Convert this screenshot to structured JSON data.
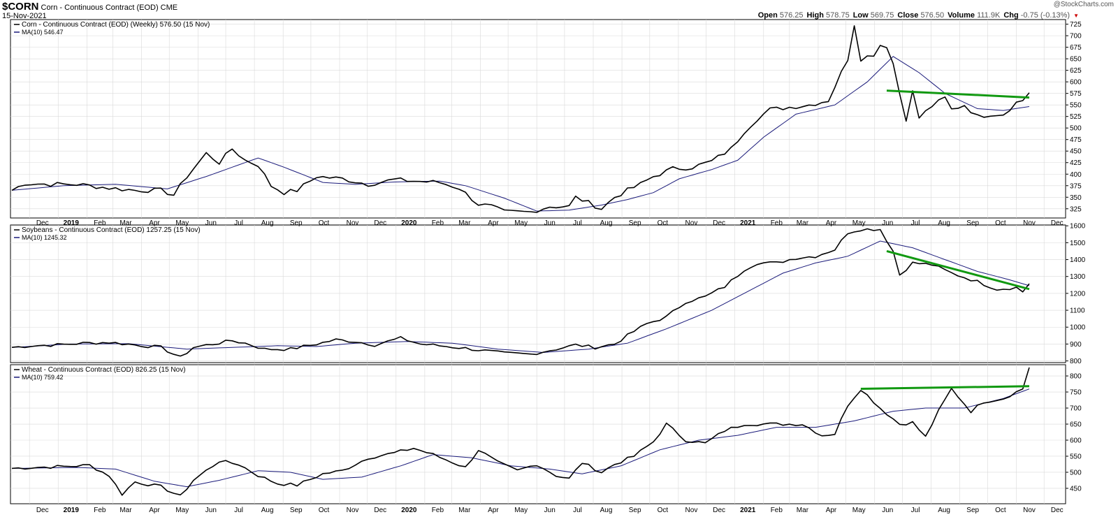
{
  "header": {
    "symbol": "$CORN",
    "symbol_desc": "Corn - Continuous Contract (EOD) CME",
    "date": "15-Nov-2021",
    "copyright": "@StockCharts.com",
    "ohlc": [
      {
        "label": "Open",
        "value": "576.25"
      },
      {
        "label": "High",
        "value": "578.75"
      },
      {
        "label": "Low",
        "value": "569.75"
      },
      {
        "label": "Close",
        "value": "576.50"
      },
      {
        "label": "Volume",
        "value": "111.9K"
      },
      {
        "label": "Chg",
        "value": "-0.75 (-0.13%)"
      }
    ]
  },
  "colors": {
    "price": "#000000",
    "ma": "#1a1a7a",
    "trend": "#119911",
    "grid": "#d9d9d9"
  },
  "chart_data": [
    {
      "type": "line",
      "legend": [
        "Corn - Continuous Contract (EOD) (Weekly) 576.50 (15 Nov)",
        "MA(10) 546.47"
      ],
      "ylim": [
        305,
        735
      ],
      "yticks": [
        325,
        350,
        375,
        400,
        425,
        450,
        475,
        500,
        525,
        550,
        575,
        600,
        625,
        650,
        675,
        700,
        725
      ],
      "anchors": [
        [
          "2018-11-12",
          365
        ],
        [
          "2018-11-26",
          380
        ],
        [
          "2018-12-24",
          378
        ],
        [
          "2019-01-21",
          378
        ],
        [
          "2019-02-25",
          370
        ],
        [
          "2019-03-25",
          365
        ],
        [
          "2019-04-22",
          365
        ],
        [
          "2019-05-06",
          355
        ],
        [
          "2019-05-20",
          395
        ],
        [
          "2019-06-10",
          445
        ],
        [
          "2019-06-24",
          425
        ],
        [
          "2019-07-08",
          455
        ],
        [
          "2019-07-22",
          430
        ],
        [
          "2019-08-05",
          420
        ],
        [
          "2019-08-19",
          375
        ],
        [
          "2019-09-02",
          360
        ],
        [
          "2019-09-16",
          365
        ],
        [
          "2019-10-07",
          395
        ],
        [
          "2019-11-04",
          390
        ],
        [
          "2019-12-02",
          378
        ],
        [
          "2019-12-30",
          388
        ],
        [
          "2020-01-20",
          385
        ],
        [
          "2020-02-17",
          382
        ],
        [
          "2020-03-09",
          370
        ],
        [
          "2020-03-30",
          335
        ],
        [
          "2020-04-13",
          330
        ],
        [
          "2020-04-27",
          318
        ],
        [
          "2020-05-25",
          318
        ],
        [
          "2020-06-15",
          330
        ],
        [
          "2020-07-06",
          330
        ],
        [
          "2020-07-13",
          350
        ],
        [
          "2020-07-27",
          338
        ],
        [
          "2020-08-10",
          325
        ],
        [
          "2020-08-24",
          350
        ],
        [
          "2020-09-07",
          365
        ],
        [
          "2020-09-21",
          378
        ],
        [
          "2020-10-05",
          395
        ],
        [
          "2020-10-26",
          412
        ],
        [
          "2020-11-16",
          415
        ],
        [
          "2020-12-07",
          428
        ],
        [
          "2020-12-28",
          455
        ],
        [
          "2021-01-11",
          492
        ],
        [
          "2021-01-25",
          520
        ],
        [
          "2021-02-08",
          540
        ],
        [
          "2021-03-01",
          545
        ],
        [
          "2021-03-22",
          550
        ],
        [
          "2021-04-12",
          560
        ],
        [
          "2021-04-26",
          620
        ],
        [
          "2021-05-03",
          650
        ],
        [
          "2021-05-10",
          725
        ],
        [
          "2021-05-17",
          650
        ],
        [
          "2021-05-31",
          660
        ],
        [
          "2021-06-07",
          680
        ],
        [
          "2021-06-14",
          678
        ],
        [
          "2021-06-21",
          640
        ],
        [
          "2021-06-28",
          575
        ],
        [
          "2021-07-05",
          520
        ],
        [
          "2021-07-12",
          578
        ],
        [
          "2021-07-19",
          522
        ],
        [
          "2021-08-02",
          548
        ],
        [
          "2021-08-16",
          565
        ],
        [
          "2021-08-23",
          540
        ],
        [
          "2021-09-06",
          550
        ],
        [
          "2021-09-20",
          525
        ],
        [
          "2021-10-04",
          530
        ],
        [
          "2021-10-18",
          530
        ],
        [
          "2021-11-01",
          555
        ],
        [
          "2021-11-08",
          560
        ],
        [
          "2021-11-15",
          576.5
        ]
      ],
      "ma_anchors": [
        [
          "2018-11-12",
          365
        ],
        [
          "2019-01-07",
          375
        ],
        [
          "2019-03-04",
          378
        ],
        [
          "2019-04-29",
          368
        ],
        [
          "2019-06-10",
          395
        ],
        [
          "2019-07-15",
          420
        ],
        [
          "2019-08-05",
          435
        ],
        [
          "2019-09-02",
          415
        ],
        [
          "2019-10-14",
          382
        ],
        [
          "2019-11-18",
          378
        ],
        [
          "2019-12-30",
          383
        ],
        [
          "2020-02-17",
          385
        ],
        [
          "2020-03-16",
          375
        ],
        [
          "2020-04-27",
          348
        ],
        [
          "2020-06-01",
          320
        ],
        [
          "2020-07-06",
          322
        ],
        [
          "2020-08-10",
          333
        ],
        [
          "2020-09-07",
          345
        ],
        [
          "2020-10-05",
          360
        ],
        [
          "2020-11-02",
          390
        ],
        [
          "2020-12-07",
          410
        ],
        [
          "2021-01-04",
          430
        ],
        [
          "2021-02-01",
          480
        ],
        [
          "2021-03-08",
          530
        ],
        [
          "2021-04-19",
          550
        ],
        [
          "2021-05-24",
          600
        ],
        [
          "2021-06-21",
          655
        ],
        [
          "2021-07-19",
          620
        ],
        [
          "2021-08-16",
          575
        ],
        [
          "2021-09-20",
          542
        ],
        [
          "2021-10-18",
          538
        ],
        [
          "2021-11-15",
          546.47
        ]
      ],
      "trendline": [
        [
          "2021-06-14",
          581
        ],
        [
          "2021-11-15",
          566
        ]
      ]
    },
    {
      "type": "line",
      "legend": [
        "Soybeans - Continuous Contract (EOD) 1257.25 (15 Nov)",
        "MA(10) 1245.32"
      ],
      "ylim": [
        790,
        1605
      ],
      "yticks": [
        800,
        900,
        1000,
        1100,
        1200,
        1300,
        1400,
        1500,
        1600
      ],
      "anchors": [
        [
          "2018-11-12",
          880
        ],
        [
          "2018-12-03",
          890
        ],
        [
          "2018-12-31",
          895
        ],
        [
          "2019-01-28",
          905
        ],
        [
          "2019-02-25",
          910
        ],
        [
          "2019-03-25",
          895
        ],
        [
          "2019-04-22",
          880
        ],
        [
          "2019-05-13",
          820
        ],
        [
          "2019-05-27",
          880
        ],
        [
          "2019-06-17",
          900
        ],
        [
          "2019-07-08",
          920
        ],
        [
          "2019-07-22",
          905
        ],
        [
          "2019-08-12",
          870
        ],
        [
          "2019-09-09",
          870
        ],
        [
          "2019-10-07",
          900
        ],
        [
          "2019-10-28",
          925
        ],
        [
          "2019-11-18",
          915
        ],
        [
          "2019-12-09",
          895
        ],
        [
          "2020-01-06",
          935
        ],
        [
          "2020-01-27",
          900
        ],
        [
          "2020-02-17",
          890
        ],
        [
          "2020-03-16",
          875
        ],
        [
          "2020-04-06",
          860
        ],
        [
          "2020-04-27",
          845
        ],
        [
          "2020-05-25",
          840
        ],
        [
          "2020-06-22",
          870
        ],
        [
          "2020-07-13",
          895
        ],
        [
          "2020-08-03",
          880
        ],
        [
          "2020-08-24",
          900
        ],
        [
          "2020-09-14",
          975
        ],
        [
          "2020-09-28",
          1020
        ],
        [
          "2020-10-19",
          1060
        ],
        [
          "2020-11-09",
          1150
        ],
        [
          "2020-11-30",
          1180
        ],
        [
          "2020-12-21",
          1240
        ],
        [
          "2021-01-11",
          1340
        ],
        [
          "2021-01-25",
          1380
        ],
        [
          "2021-02-15",
          1380
        ],
        [
          "2021-03-08",
          1410
        ],
        [
          "2021-03-29",
          1420
        ],
        [
          "2021-04-19",
          1460
        ],
        [
          "2021-05-03",
          1560
        ],
        [
          "2021-05-17",
          1580
        ],
        [
          "2021-06-07",
          1580
        ],
        [
          "2021-06-21",
          1450
        ],
        [
          "2021-06-28",
          1310
        ],
        [
          "2021-07-12",
          1380
        ],
        [
          "2021-08-02",
          1370
        ],
        [
          "2021-08-23",
          1320
        ],
        [
          "2021-09-20",
          1270
        ],
        [
          "2021-10-11",
          1225
        ],
        [
          "2021-11-01",
          1235
        ],
        [
          "2021-11-08",
          1210
        ],
        [
          "2021-11-15",
          1257.25
        ]
      ],
      "ma_anchors": [
        [
          "2018-11-12",
          880
        ],
        [
          "2019-01-14",
          900
        ],
        [
          "2019-03-18",
          902
        ],
        [
          "2019-05-20",
          870
        ],
        [
          "2019-07-08",
          880
        ],
        [
          "2019-08-26",
          890
        ],
        [
          "2019-10-07",
          885
        ],
        [
          "2019-11-18",
          905
        ],
        [
          "2020-01-13",
          915
        ],
        [
          "2020-03-02",
          905
        ],
        [
          "2020-04-20",
          870
        ],
        [
          "2020-06-08",
          850
        ],
        [
          "2020-07-27",
          870
        ],
        [
          "2020-09-07",
          905
        ],
        [
          "2020-10-19",
          990
        ],
        [
          "2020-12-07",
          1100
        ],
        [
          "2021-01-18",
          1220
        ],
        [
          "2021-02-22",
          1320
        ],
        [
          "2021-03-29",
          1380
        ],
        [
          "2021-05-03",
          1420
        ],
        [
          "2021-06-07",
          1510
        ],
        [
          "2021-07-12",
          1470
        ],
        [
          "2021-08-16",
          1400
        ],
        [
          "2021-09-20",
          1330
        ],
        [
          "2021-10-25",
          1280
        ],
        [
          "2021-11-15",
          1245.32
        ]
      ],
      "trendline": [
        [
          "2021-06-14",
          1450
        ],
        [
          "2021-11-15",
          1225
        ]
      ]
    },
    {
      "type": "line",
      "legend": [
        "Wheat - Continuous Contract (EOD) 826.25 (15 Nov)",
        "MA(10) 759.42"
      ],
      "ylim": [
        402,
        835
      ],
      "yticks": [
        450,
        500,
        550,
        600,
        650,
        700,
        750,
        800
      ],
      "anchors": [
        [
          "2018-11-12",
          512
        ],
        [
          "2018-12-03",
          515
        ],
        [
          "2019-01-07",
          518
        ],
        [
          "2019-02-04",
          522
        ],
        [
          "2019-02-25",
          490
        ],
        [
          "2019-03-11",
          432
        ],
        [
          "2019-03-25",
          470
        ],
        [
          "2019-04-22",
          455
        ],
        [
          "2019-05-13",
          425
        ],
        [
          "2019-05-27",
          475
        ],
        [
          "2019-06-24",
          535
        ],
        [
          "2019-07-15",
          525
        ],
        [
          "2019-08-05",
          490
        ],
        [
          "2019-08-26",
          465
        ],
        [
          "2019-09-16",
          460
        ],
        [
          "2019-10-14",
          495
        ],
        [
          "2019-11-04",
          505
        ],
        [
          "2019-12-02",
          545
        ],
        [
          "2019-12-30",
          560
        ],
        [
          "2020-01-20",
          575
        ],
        [
          "2020-02-10",
          555
        ],
        [
          "2020-03-16",
          515
        ],
        [
          "2020-03-30",
          570
        ],
        [
          "2020-04-20",
          530
        ],
        [
          "2020-05-11",
          505
        ],
        [
          "2020-06-01",
          525
        ],
        [
          "2020-06-22",
          490
        ],
        [
          "2020-07-06",
          480
        ],
        [
          "2020-07-20",
          530
        ],
        [
          "2020-08-10",
          500
        ],
        [
          "2020-08-24",
          525
        ],
        [
          "2020-09-14",
          550
        ],
        [
          "2020-10-05",
          595
        ],
        [
          "2020-10-19",
          650
        ],
        [
          "2020-11-09",
          600
        ],
        [
          "2020-11-30",
          590
        ],
        [
          "2020-12-21",
          630
        ],
        [
          "2021-01-11",
          650
        ],
        [
          "2021-02-01",
          650
        ],
        [
          "2021-02-22",
          650
        ],
        [
          "2021-03-15",
          650
        ],
        [
          "2021-04-05",
          615
        ],
        [
          "2021-04-19",
          620
        ],
        [
          "2021-05-03",
          710
        ],
        [
          "2021-05-17",
          760
        ],
        [
          "2021-06-07",
          700
        ],
        [
          "2021-06-28",
          650
        ],
        [
          "2021-07-12",
          655
        ],
        [
          "2021-07-26",
          610
        ],
        [
          "2021-08-09",
          690
        ],
        [
          "2021-08-23",
          760
        ],
        [
          "2021-09-13",
          690
        ],
        [
          "2021-09-27",
          720
        ],
        [
          "2021-10-18",
          730
        ],
        [
          "2021-11-08",
          760
        ],
        [
          "2021-11-15",
          826.25
        ]
      ],
      "ma_anchors": [
        [
          "2018-11-12",
          512
        ],
        [
          "2019-01-21",
          515
        ],
        [
          "2019-03-04",
          510
        ],
        [
          "2019-04-15",
          472
        ],
        [
          "2019-05-20",
          455
        ],
        [
          "2019-06-24",
          475
        ],
        [
          "2019-08-05",
          505
        ],
        [
          "2019-09-09",
          500
        ],
        [
          "2019-10-14",
          478
        ],
        [
          "2019-11-25",
          485
        ],
        [
          "2020-01-06",
          520
        ],
        [
          "2020-02-10",
          555
        ],
        [
          "2020-03-23",
          545
        ],
        [
          "2020-05-04",
          520
        ],
        [
          "2020-06-15",
          510
        ],
        [
          "2020-07-20",
          495
        ],
        [
          "2020-08-31",
          520
        ],
        [
          "2020-10-12",
          570
        ],
        [
          "2020-11-23",
          600
        ],
        [
          "2021-01-04",
          615
        ],
        [
          "2021-02-15",
          640
        ],
        [
          "2021-03-29",
          640
        ],
        [
          "2021-05-10",
          660
        ],
        [
          "2021-06-21",
          690
        ],
        [
          "2021-07-26",
          700
        ],
        [
          "2021-09-06",
          700
        ],
        [
          "2021-10-18",
          730
        ],
        [
          "2021-11-15",
          759.42
        ]
      ],
      "trendline": [
        [
          "2021-05-17",
          760
        ],
        [
          "2021-11-15",
          768
        ]
      ]
    }
  ],
  "month_labels": [
    [
      "2018-12-15",
      "Dec"
    ],
    [
      "2019-01-15",
      "2019"
    ],
    [
      "2019-02-15",
      "Feb"
    ],
    [
      "2019-03-15",
      "Mar"
    ],
    [
      "2019-04-15",
      "Apr"
    ],
    [
      "2019-05-15",
      "May"
    ],
    [
      "2019-06-15",
      "Jun"
    ],
    [
      "2019-07-15",
      "Jul"
    ],
    [
      "2019-08-15",
      "Aug"
    ],
    [
      "2019-09-15",
      "Sep"
    ],
    [
      "2019-10-15",
      "Oct"
    ],
    [
      "2019-11-15",
      "Nov"
    ],
    [
      "2019-12-15",
      "Dec"
    ],
    [
      "2020-01-15",
      "2020"
    ],
    [
      "2020-02-15",
      "Feb"
    ],
    [
      "2020-03-15",
      "Mar"
    ],
    [
      "2020-04-15",
      "Apr"
    ],
    [
      "2020-05-15",
      "May"
    ],
    [
      "2020-06-15",
      "Jun"
    ],
    [
      "2020-07-15",
      "Jul"
    ],
    [
      "2020-08-15",
      "Aug"
    ],
    [
      "2020-09-15",
      "Sep"
    ],
    [
      "2020-10-15",
      "Oct"
    ],
    [
      "2020-11-15",
      "Nov"
    ],
    [
      "2020-12-15",
      "Dec"
    ],
    [
      "2021-01-15",
      "2021"
    ],
    [
      "2021-02-15",
      "Feb"
    ],
    [
      "2021-03-15",
      "Mar"
    ],
    [
      "2021-04-15",
      "Apr"
    ],
    [
      "2021-05-15",
      "May"
    ],
    [
      "2021-06-15",
      "Jun"
    ],
    [
      "2021-07-15",
      "Jul"
    ],
    [
      "2021-08-15",
      "Aug"
    ],
    [
      "2021-09-15",
      "Sep"
    ],
    [
      "2021-10-15",
      "Oct"
    ],
    [
      "2021-11-15",
      "Nov"
    ],
    [
      "2021-12-15",
      "Dec"
    ]
  ]
}
